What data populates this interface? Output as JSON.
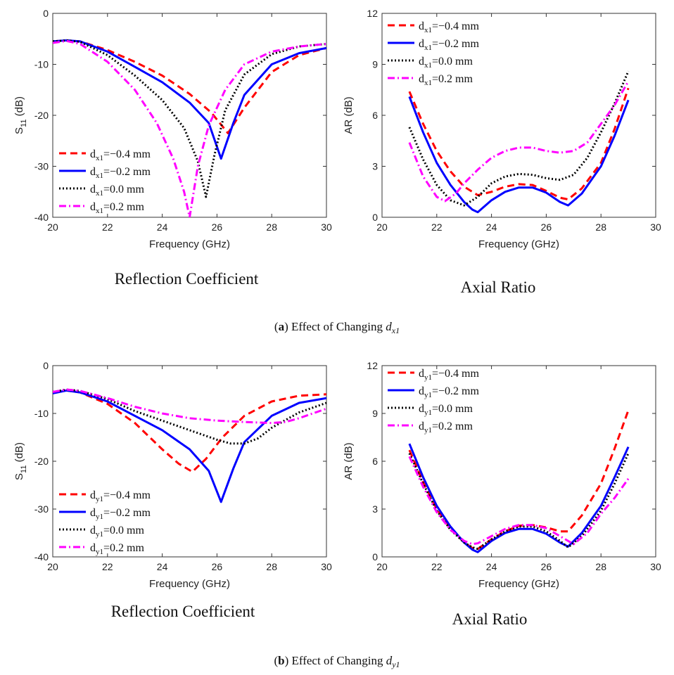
{
  "captions": [
    {
      "label": "a",
      "text": "Effect of Changing",
      "var": "d",
      "sub": "x1"
    },
    {
      "label": "b",
      "text": "Effect of Changing",
      "var": "d",
      "sub": "y1"
    }
  ],
  "chart_data": [
    {
      "id": "a-s11",
      "type": "line",
      "title": "Reflection Coefficient",
      "xlabel": "Frequency (GHz)",
      "ylabel": "S11 (dB)",
      "ylabel_main": "S",
      "ylabel_sub": "11",
      "ylabel_unit": " (dB)",
      "xlim": [
        20,
        30
      ],
      "ylim": [
        -40,
        0
      ],
      "xticks": [
        20,
        22,
        24,
        26,
        28,
        30
      ],
      "yticks": [
        0,
        -10,
        -20,
        -30,
        -40
      ],
      "legend_position": "bottom-left",
      "series": [
        {
          "name": "dx1=−0.4 mm",
          "prefix": "d",
          "sub": "x1",
          "suffix": "=−0.4 mm",
          "color": "#ff0000",
          "style": "dashed",
          "x": [
            20,
            20.5,
            21,
            22,
            23,
            24,
            25,
            25.8,
            26.4,
            27,
            28,
            29,
            30
          ],
          "y": [
            -5.5,
            -5.3,
            -5.5,
            -7.2,
            -9.5,
            -12.2,
            -15.8,
            -19.5,
            -23.5,
            -18.5,
            -11.5,
            -8.2,
            -6.8
          ]
        },
        {
          "name": "dx1=−0.2 mm",
          "prefix": "d",
          "sub": "x1",
          "suffix": "=−0.2 mm",
          "color": "#0000ff",
          "style": "solid",
          "x": [
            20,
            20.5,
            21,
            22,
            23,
            24,
            25,
            25.7,
            26.15,
            26.6,
            27,
            28,
            29,
            30
          ],
          "y": [
            -5.5,
            -5.3,
            -5.5,
            -7.5,
            -10.5,
            -13.5,
            -17.5,
            -21.5,
            -28.5,
            -21.5,
            -16,
            -10,
            -7.8,
            -6.8
          ]
        },
        {
          "name": "dx1=0.0 mm",
          "prefix": "d",
          "sub": "x1",
          "suffix": "=0.0 mm",
          "color": "#000000",
          "style": "dotted",
          "x": [
            20,
            20.5,
            21,
            22,
            23,
            24,
            24.8,
            25.3,
            25.6,
            25.9,
            26.3,
            27,
            28,
            29,
            30
          ],
          "y": [
            -5.5,
            -5.3,
            -5.6,
            -8.2,
            -12.2,
            -17,
            -22.5,
            -29,
            -36,
            -28,
            -19,
            -12,
            -8,
            -6.5,
            -6
          ]
        },
        {
          "name": "dx1=0.2 mm",
          "prefix": "d",
          "sub": "x1",
          "suffix": "=0.2 mm",
          "color": "#ff00ff",
          "style": "dashdot",
          "x": [
            20,
            20.5,
            21,
            22,
            23,
            23.8,
            24.4,
            24.8,
            25.0,
            25.3,
            25.7,
            26.3,
            27,
            28,
            29,
            30
          ],
          "y": [
            -5.8,
            -5.4,
            -6.0,
            -9.5,
            -15,
            -21.5,
            -28.5,
            -35,
            -40,
            -30,
            -22,
            -15,
            -10,
            -7.5,
            -6.5,
            -6
          ]
        }
      ]
    },
    {
      "id": "a-ar",
      "type": "line",
      "title": "Axial Ratio",
      "xlabel": "Frequency (GHz)",
      "ylabel": "AR (dB)",
      "ylabel_main": "AR (dB)",
      "ylabel_sub": "",
      "ylabel_unit": "",
      "xlim": [
        20,
        30
      ],
      "ylim": [
        0,
        12
      ],
      "xticks": [
        20,
        22,
        24,
        26,
        28,
        30
      ],
      "yticks": [
        0,
        3,
        6,
        9,
        12
      ],
      "legend_position": "top-left",
      "series": [
        {
          "name": "dx1=−0.4 mm",
          "prefix": "d",
          "sub": "x1",
          "suffix": "=−0.4 mm",
          "color": "#ff0000",
          "style": "dashed",
          "x": [
            21,
            21.5,
            22,
            22.5,
            23,
            23.5,
            24,
            24.5,
            25,
            25.5,
            26,
            26.5,
            26.8,
            27.3,
            28,
            28.5,
            29
          ],
          "y": [
            7.4,
            5.5,
            3.9,
            2.7,
            1.8,
            1.3,
            1.5,
            1.8,
            1.95,
            1.9,
            1.55,
            1.15,
            1.05,
            1.7,
            3.2,
            5.2,
            7.6
          ]
        },
        {
          "name": "dx1=−0.2 mm",
          "prefix": "d",
          "sub": "x1",
          "suffix": "=−0.2 mm",
          "color": "#0000ff",
          "style": "solid",
          "x": [
            21,
            21.5,
            22,
            22.5,
            23,
            23.3,
            23.5,
            24,
            24.5,
            25,
            25.5,
            26,
            26.5,
            26.8,
            27.3,
            28,
            28.5,
            29
          ],
          "y": [
            7.1,
            5.0,
            3.2,
            1.9,
            0.9,
            0.45,
            0.3,
            1.0,
            1.5,
            1.75,
            1.75,
            1.45,
            0.9,
            0.7,
            1.4,
            3.0,
            4.8,
            6.9
          ]
        },
        {
          "name": "dx1=0.0 mm",
          "prefix": "d",
          "sub": "x1",
          "suffix": "=0.0 mm",
          "color": "#000000",
          "style": "dotted",
          "x": [
            21,
            21.5,
            22,
            22.5,
            23,
            23.5,
            24,
            24.5,
            25,
            25.5,
            26,
            26.5,
            27,
            27.5,
            28,
            28.5,
            29
          ],
          "y": [
            5.3,
            3.4,
            1.9,
            1.0,
            0.7,
            1.2,
            2.0,
            2.4,
            2.55,
            2.5,
            2.3,
            2.2,
            2.5,
            3.5,
            5.0,
            6.7,
            8.6
          ]
        },
        {
          "name": "dx1=0.2 mm",
          "prefix": "d",
          "sub": "x1",
          "suffix": "=0.2 mm",
          "color": "#ff00ff",
          "style": "dashdot",
          "x": [
            21,
            21.5,
            22,
            22.3,
            22.7,
            23,
            23.5,
            24,
            24.5,
            25,
            25.5,
            26,
            26.5,
            27,
            27.5,
            28,
            28.5,
            29
          ],
          "y": [
            4.4,
            2.4,
            1.2,
            0.95,
            1.4,
            2.0,
            2.8,
            3.5,
            3.9,
            4.1,
            4.1,
            3.9,
            3.8,
            3.9,
            4.4,
            5.5,
            6.6,
            8.0
          ]
        }
      ]
    },
    {
      "id": "b-s11",
      "type": "line",
      "title": "Reflection Coefficient",
      "xlabel": "Frequency (GHz)",
      "ylabel": "S11 (dB)",
      "ylabel_main": "S",
      "ylabel_sub": "11",
      "ylabel_unit": " (dB)",
      "xlim": [
        20,
        30
      ],
      "ylim": [
        -40,
        0
      ],
      "xticks": [
        20,
        22,
        24,
        26,
        28,
        30
      ],
      "yticks": [
        0,
        -10,
        -20,
        -30,
        -40
      ],
      "legend_position": "bottom-left",
      "series": [
        {
          "name": "dy1=−0.4 mm",
          "prefix": "d",
          "sub": "y1",
          "suffix": "=−0.4 mm",
          "color": "#ff0000",
          "style": "dashed",
          "x": [
            20,
            20.5,
            21,
            22,
            23,
            24,
            24.6,
            25.1,
            25.6,
            26.2,
            27,
            28,
            29,
            30
          ],
          "y": [
            -5.5,
            -5.2,
            -5.6,
            -8,
            -12,
            -17.5,
            -20.5,
            -22.2,
            -19.5,
            -15,
            -10.5,
            -7.5,
            -6.3,
            -6
          ]
        },
        {
          "name": "dy1=−0.2 mm",
          "prefix": "d",
          "sub": "y1",
          "suffix": "=−0.2 mm",
          "color": "#0000ff",
          "style": "solid",
          "x": [
            20,
            20.5,
            21,
            22,
            23,
            24,
            25,
            25.7,
            26.15,
            26.6,
            27,
            28,
            29,
            30
          ],
          "y": [
            -5.8,
            -5.2,
            -5.6,
            -7.5,
            -10.5,
            -13.5,
            -17.5,
            -22,
            -28.5,
            -21.5,
            -16,
            -10.5,
            -7.8,
            -6.8
          ]
        },
        {
          "name": "dy1=0.0 mm",
          "prefix": "d",
          "sub": "y1",
          "suffix": "=0.0 mm",
          "color": "#000000",
          "style": "dotted",
          "x": [
            20,
            20.5,
            21,
            22,
            23,
            24,
            25,
            26,
            26.5,
            27,
            27.5,
            28,
            29,
            30
          ],
          "y": [
            -5.5,
            -5.0,
            -5.3,
            -7,
            -9.5,
            -11.5,
            -13.5,
            -15.5,
            -16.3,
            -16.3,
            -15.2,
            -13,
            -9.8,
            -7.8
          ]
        },
        {
          "name": "dy1=0.2 mm",
          "prefix": "d",
          "sub": "y1",
          "suffix": "=0.2 mm",
          "color": "#ff00ff",
          "style": "dashdot",
          "x": [
            20,
            20.5,
            21,
            22,
            23,
            24,
            25,
            26,
            27,
            28,
            28.5,
            29,
            30
          ],
          "y": [
            -5.5,
            -5.0,
            -5.3,
            -6.8,
            -8.6,
            -10,
            -11,
            -11.5,
            -11.8,
            -12,
            -11.8,
            -11,
            -9
          ]
        }
      ]
    },
    {
      "id": "b-ar",
      "type": "line",
      "title": "Axial Ratio",
      "xlabel": "Frequency (GHz)",
      "ylabel": "AR (dB)",
      "ylabel_main": "AR (dB)",
      "ylabel_sub": "",
      "ylabel_unit": "",
      "xlim": [
        20,
        30
      ],
      "ylim": [
        0,
        12
      ],
      "xticks": [
        20,
        22,
        24,
        26,
        28,
        30
      ],
      "yticks": [
        0,
        3,
        6,
        9,
        12
      ],
      "legend_position": "top-left",
      "series": [
        {
          "name": "dy1=−0.4 mm",
          "prefix": "d",
          "sub": "y1",
          "suffix": "=−0.4 mm",
          "color": "#ff0000",
          "style": "dashed",
          "x": [
            21,
            21.5,
            22,
            22.5,
            23,
            23.3,
            23.5,
            24,
            24.5,
            25,
            25.5,
            26,
            26.5,
            26.8,
            27.3,
            28,
            28.5,
            29
          ],
          "y": [
            6.7,
            4.7,
            3.0,
            1.8,
            0.9,
            0.55,
            0.5,
            1.1,
            1.6,
            1.95,
            2.0,
            1.85,
            1.6,
            1.6,
            2.6,
            4.6,
            6.8,
            9.2
          ]
        },
        {
          "name": "dy1=−0.2 mm",
          "prefix": "d",
          "sub": "y1",
          "suffix": "=−0.2 mm",
          "color": "#0000ff",
          "style": "solid",
          "x": [
            21,
            21.5,
            22,
            22.5,
            23,
            23.3,
            23.5,
            24,
            24.5,
            25,
            25.5,
            26,
            26.5,
            26.8,
            27.3,
            28,
            28.5,
            29
          ],
          "y": [
            7.1,
            5.0,
            3.2,
            1.9,
            0.9,
            0.45,
            0.3,
            1.0,
            1.5,
            1.75,
            1.75,
            1.45,
            0.9,
            0.65,
            1.5,
            3.2,
            5.0,
            6.9
          ]
        },
        {
          "name": "dy1=0.0 mm",
          "prefix": "d",
          "sub": "y1",
          "suffix": "=0.0 mm",
          "color": "#000000",
          "style": "dotted",
          "x": [
            21,
            21.5,
            22,
            22.5,
            23,
            23.3,
            23.5,
            24,
            24.5,
            25,
            25.5,
            26,
            26.5,
            26.8,
            27.3,
            28,
            28.5,
            29
          ],
          "y": [
            6.5,
            4.6,
            2.9,
            1.7,
            0.9,
            0.6,
            0.5,
            1.1,
            1.6,
            1.9,
            1.9,
            1.6,
            1.0,
            0.6,
            1.3,
            2.9,
            4.6,
            6.5
          ]
        },
        {
          "name": "dy1=0.2 mm",
          "prefix": "d",
          "sub": "y1",
          "suffix": "=0.2 mm",
          "color": "#ff00ff",
          "style": "dashdot",
          "x": [
            21,
            21.5,
            22,
            22.5,
            23,
            23.3,
            23.5,
            24,
            24.5,
            25,
            25.5,
            26,
            26.5,
            27,
            27.5,
            28,
            28.5,
            29
          ],
          "y": [
            6.3,
            4.4,
            2.8,
            1.7,
            1.0,
            0.8,
            0.85,
            1.3,
            1.75,
            2.0,
            2.0,
            1.8,
            1.3,
            0.8,
            1.5,
            2.7,
            3.7,
            4.9
          ]
        }
      ]
    }
  ]
}
